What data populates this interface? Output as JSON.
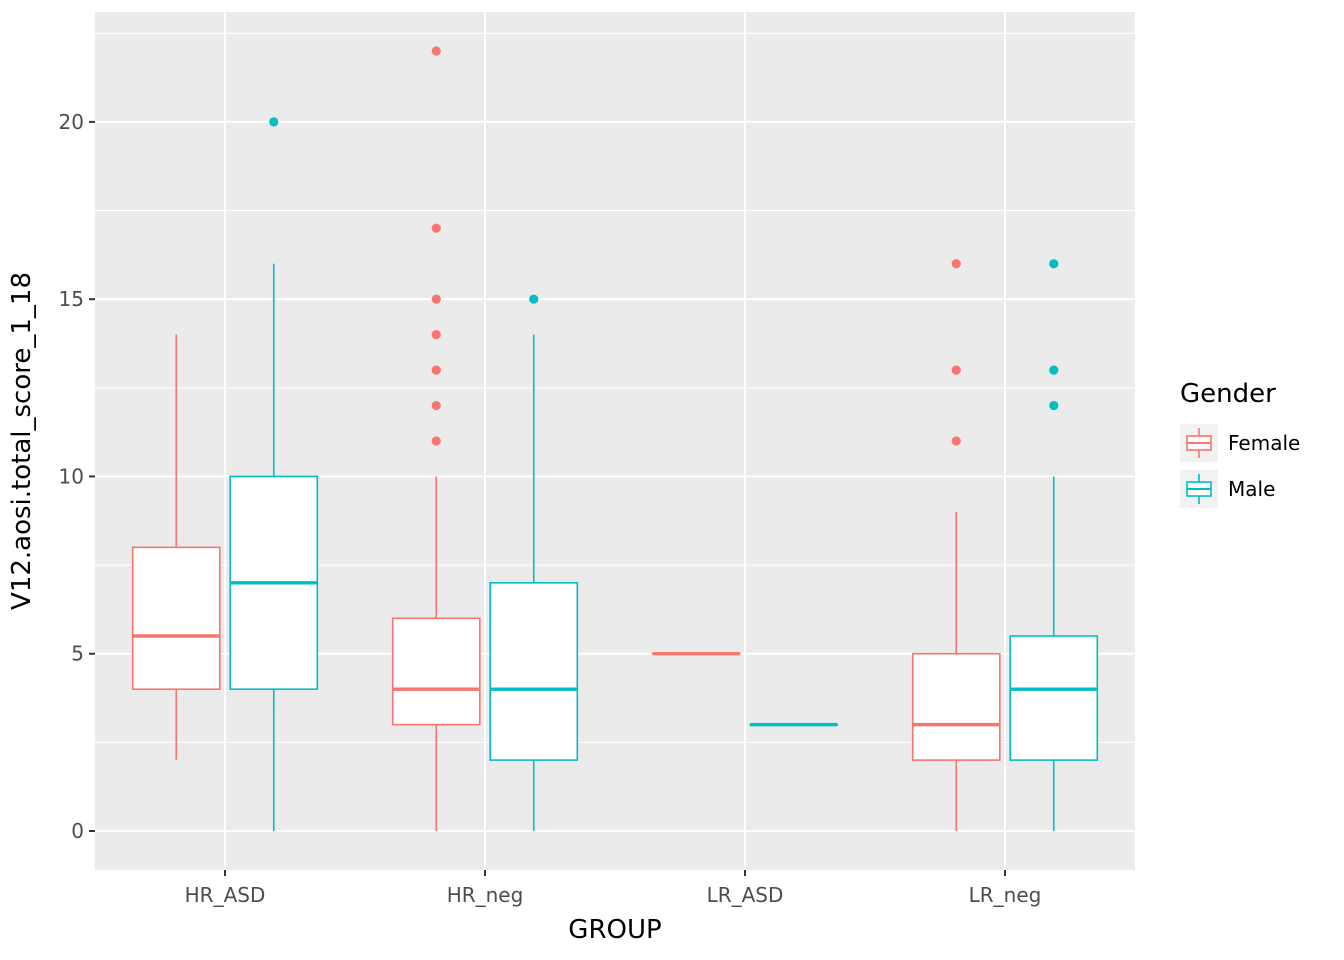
{
  "chart_data": {
    "type": "boxplot",
    "title": "",
    "xlabel": "GROUP",
    "ylabel": "V12.aosi.total_score_1_18",
    "categories": [
      "HR_ASD",
      "HR_neg",
      "LR_ASD",
      "LR_neg"
    ],
    "yticks": [
      0,
      5,
      10,
      15,
      20
    ],
    "yticks_minor": [
      2.5,
      7.5,
      12.5,
      17.5,
      22.5
    ],
    "ylim": [
      -1.1,
      23.1
    ],
    "grid": true,
    "panel_bg": "#EBEBEB",
    "grid_color": "#FFFFFF",
    "tick_label_color": "#4D4D4D",
    "axis_title_color": "#000000",
    "legend": {
      "title": "Gender",
      "position": "right",
      "key_bg": "#F2F2F2",
      "entries": [
        {
          "label": "Female",
          "color": "#F8766D"
        },
        {
          "label": "Male",
          "color": "#00BFC4"
        }
      ]
    },
    "series": [
      {
        "name": "Female",
        "color": "#F8766D",
        "boxes": [
          {
            "category": "HR_ASD",
            "low": 2,
            "q1": 4,
            "median": 5.5,
            "q3": 8,
            "high": 14,
            "outliers": []
          },
          {
            "category": "HR_neg",
            "low": 0,
            "q1": 3,
            "median": 4,
            "q3": 6,
            "high": 10,
            "outliers": [
              22,
              17,
              15,
              14,
              13,
              12,
              11
            ]
          },
          {
            "category": "LR_ASD",
            "low": 5,
            "q1": 5,
            "median": 5,
            "q3": 5,
            "high": 5,
            "outliers": []
          },
          {
            "category": "LR_neg",
            "low": 0,
            "q1": 2,
            "median": 3,
            "q3": 5,
            "high": 9,
            "outliers": [
              16,
              13,
              11
            ]
          }
        ]
      },
      {
        "name": "Male",
        "color": "#00BFC4",
        "boxes": [
          {
            "category": "HR_ASD",
            "low": 0,
            "q1": 4,
            "median": 7,
            "q3": 10,
            "high": 16,
            "outliers": [
              20
            ]
          },
          {
            "category": "HR_neg",
            "low": 0,
            "q1": 2,
            "median": 4,
            "q3": 7,
            "high": 14,
            "outliers": [
              15
            ]
          },
          {
            "category": "LR_ASD",
            "low": 3,
            "q1": 3,
            "median": 3,
            "q3": 3,
            "high": 3,
            "outliers": []
          },
          {
            "category": "LR_neg",
            "low": 0,
            "q1": 2,
            "median": 4,
            "q3": 5.5,
            "high": 10,
            "outliers": [
              16,
              13,
              12
            ]
          }
        ]
      }
    ]
  }
}
